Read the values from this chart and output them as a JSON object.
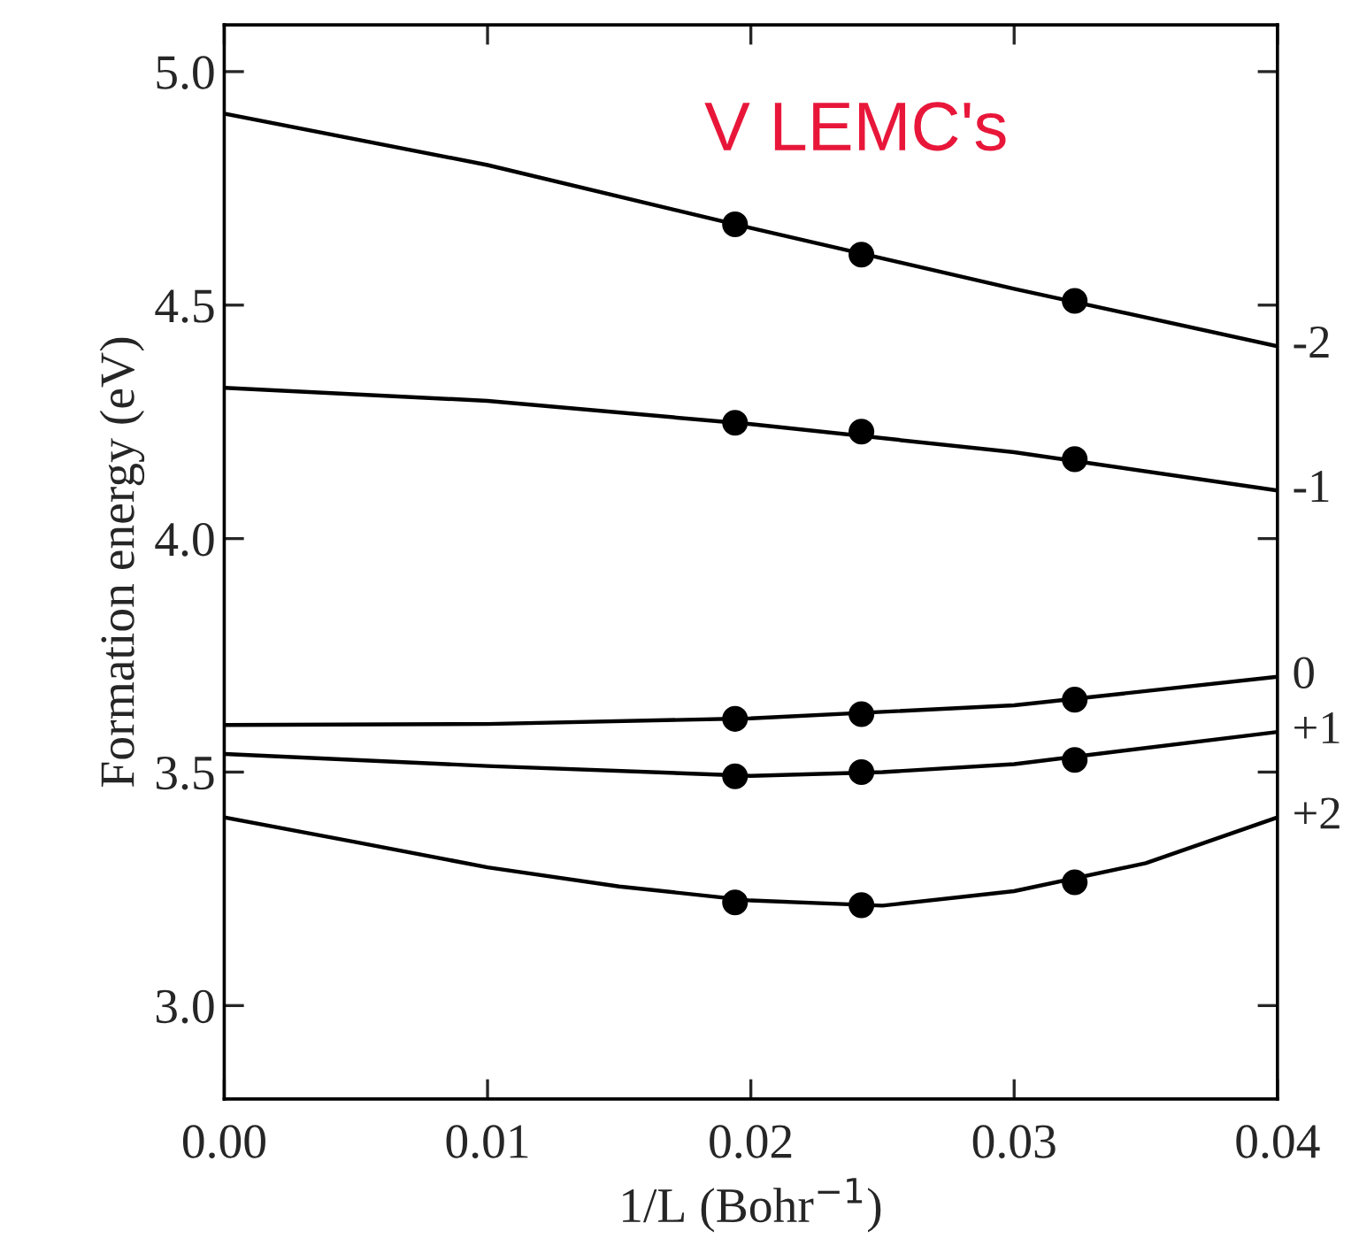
{
  "chart_data": {
    "type": "line",
    "xlabel": "1/L (Bohr$^{−1}$)",
    "ylabel": "Formation energy (eV)",
    "annotations": [
      "V LEMC's"
    ],
    "xlim": [
      0,
      0.04
    ],
    "ylim": [
      2.8,
      5.1
    ],
    "xticks": [
      {
        "value": 0,
        "label": "0.00"
      },
      {
        "value": 0.01,
        "label": "0.01"
      },
      {
        "value": 0.02,
        "label": "0.02"
      },
      {
        "value": 0.03,
        "label": "0.03"
      },
      {
        "value": 0.04,
        "label": "0.04"
      }
    ],
    "yticks": [
      {
        "value": 3.0,
        "label": "3.0"
      },
      {
        "value": 3.5,
        "label": "3.5"
      },
      {
        "value": 4.0,
        "label": "4.0"
      },
      {
        "value": 4.5,
        "label": "4.5"
      },
      {
        "value": 5.0,
        "label": "5.0"
      }
    ],
    "grid": false,
    "legend": false,
    "line_style": "solid",
    "marker": "none",
    "series": [
      {
        "name": "-2",
        "color": "#000000",
        "x": [
          0,
          0.01,
          0.02,
          0.03,
          0.04
        ],
        "values": [
          4.91,
          4.8,
          4.665,
          4.535,
          4.412
        ]
      },
      {
        "name": "-1",
        "color": "#000000",
        "x": [
          0,
          0.01,
          0.02,
          0.03,
          0.04
        ],
        "values": [
          4.323,
          4.295,
          4.245,
          4.185,
          4.103
        ]
      },
      {
        "name": "0",
        "color": "#000000",
        "x": [
          0,
          0.01,
          0.02,
          0.03,
          0.04
        ],
        "values": [
          3.601,
          3.603,
          3.615,
          3.643,
          3.704
        ]
      },
      {
        "name": "+1",
        "color": "#000000",
        "x": [
          0,
          0.01,
          0.02,
          0.025,
          0.03,
          0.04
        ],
        "values": [
          3.539,
          3.513,
          3.492,
          3.5,
          3.517,
          3.586
        ]
      },
      {
        "name": "+2",
        "color": "#000000",
        "x": [
          0,
          0.005,
          0.01,
          0.015,
          0.02,
          0.025,
          0.03,
          0.035,
          0.04
        ],
        "values": [
          3.403,
          3.35,
          3.296,
          3.255,
          3.225,
          3.214,
          3.245,
          3.305,
          3.403
        ]
      },
      {
        "type": "scatter",
        "marker": "circle",
        "color": "#000000",
        "x": [
          0.0194,
          0.0242,
          0.0323
        ],
        "values": [
          4.673,
          4.608,
          4.509
        ]
      },
      {
        "type": "scatter",
        "marker": "circle",
        "color": "#000000",
        "x": [
          0.0194,
          0.0242,
          0.0323
        ],
        "values": [
          4.248,
          4.229,
          4.17
        ]
      },
      {
        "type": "scatter",
        "marker": "circle",
        "color": "#000000",
        "x": [
          0.0194,
          0.0242,
          0.0323
        ],
        "values": [
          3.614,
          3.624,
          3.655
        ]
      },
      {
        "type": "scatter",
        "marker": "circle",
        "color": "#000000",
        "x": [
          0.0194,
          0.0242,
          0.0323
        ],
        "values": [
          3.491,
          3.5,
          3.526
        ]
      },
      {
        "type": "scatter",
        "marker": "circle",
        "color": "#000000",
        "x": [
          0.0194,
          0.0242,
          0.0323
        ],
        "values": [
          3.221,
          3.215,
          3.264
        ]
      }
    ]
  }
}
